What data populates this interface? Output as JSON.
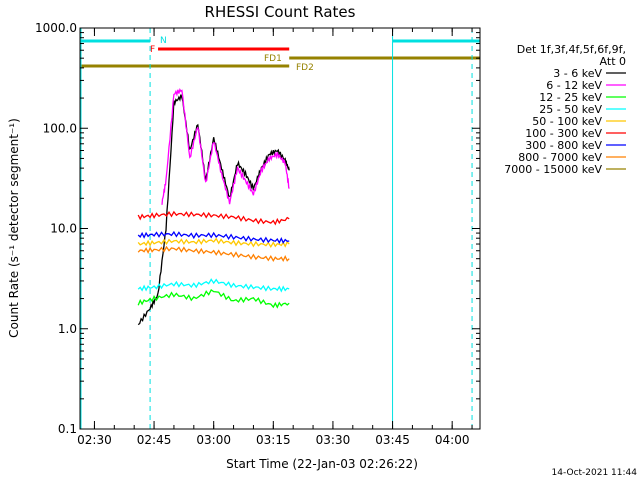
{
  "chart_data": {
    "type": "line",
    "title": "RHESSI Count Rates",
    "xlabel": "Start Time (22-Jan-03 02:26:22)",
    "ylabel": "Count Rate (s⁻¹ detector segment⁻¹)",
    "yscale": "log",
    "ylim": [
      0.1,
      1000
    ],
    "xlim": [
      "02:26:22",
      "04:07:00"
    ],
    "x_ticks": [
      "02:30",
      "02:45",
      "03:00",
      "03:15",
      "03:30",
      "03:45",
      "04:00"
    ],
    "y_ticks": [
      "0.1",
      "1.0",
      "10.0",
      "100.0",
      "1000.0"
    ],
    "grid": false,
    "legend_position": "right",
    "legend_header": [
      "Det 1f,3f,4f,5f,6f,9f,",
      "Att 0"
    ],
    "series": [
      {
        "name": "3 - 6 keV",
        "color": "#000000",
        "x": [
          "02:41",
          "02:44",
          "02:46",
          "02:48",
          "02:50",
          "02:52",
          "02:54",
          "02:56",
          "02:58",
          "03:00",
          "03:02",
          "03:04",
          "03:06",
          "03:08",
          "03:10",
          "03:12",
          "03:14",
          "03:16",
          "03:18",
          "03:19"
        ],
        "y": [
          1.1,
          1.6,
          2.2,
          10,
          180,
          210,
          60,
          110,
          30,
          80,
          40,
          20,
          45,
          35,
          25,
          40,
          55,
          60,
          48,
          38
        ]
      },
      {
        "name": "6 - 12 keV",
        "color": "#ff00ff",
        "x": [
          "02:47",
          "02:48",
          "02:50",
          "02:52",
          "02:54",
          "02:56",
          "02:58",
          "03:00",
          "03:02",
          "03:04",
          "03:06",
          "03:08",
          "03:10",
          "03:12",
          "03:14",
          "03:16",
          "03:18",
          "03:19"
        ],
        "y": [
          18,
          30,
          220,
          240,
          50,
          105,
          28,
          75,
          35,
          18,
          40,
          30,
          22,
          38,
          50,
          55,
          45,
          25
        ]
      },
      {
        "name": "12 - 25 keV",
        "color": "#00ff00",
        "x": [
          "02:41",
          "02:45",
          "02:50",
          "02:55",
          "03:00",
          "03:05",
          "03:10",
          "03:15",
          "03:19"
        ],
        "y": [
          1.8,
          2.0,
          2.2,
          2.0,
          2.4,
          1.9,
          2.0,
          1.7,
          1.8
        ]
      },
      {
        "name": "25 - 50 keV",
        "color": "#00ffff",
        "x": [
          "02:41",
          "02:45",
          "02:50",
          "02:55",
          "03:00",
          "03:05",
          "03:10",
          "03:15",
          "03:19"
        ],
        "y": [
          2.5,
          2.6,
          2.8,
          2.7,
          3.0,
          2.7,
          2.6,
          2.5,
          2.5
        ]
      },
      {
        "name": "50 - 100 keV",
        "color": "#ffc800",
        "x": [
          "02:41",
          "02:45",
          "02:50",
          "02:55",
          "03:00",
          "03:05",
          "03:10",
          "03:15",
          "03:19"
        ],
        "y": [
          7,
          7.2,
          7.5,
          7.3,
          7.6,
          7.2,
          7.0,
          6.9,
          7.0
        ]
      },
      {
        "name": "100 - 300 keV",
        "color": "#ff0000",
        "x": [
          "02:41",
          "02:45",
          "02:50",
          "02:55",
          "03:00",
          "03:05",
          "03:10",
          "03:15",
          "03:19"
        ],
        "y": [
          13,
          13.5,
          14,
          13.8,
          13.5,
          13,
          12,
          11.5,
          12.5
        ]
      },
      {
        "name": "300 - 800 keV",
        "color": "#0000ff",
        "x": [
          "02:41",
          "02:45",
          "02:50",
          "02:55",
          "03:00",
          "03:05",
          "03:10",
          "03:15",
          "03:19"
        ],
        "y": [
          8.5,
          8.7,
          8.8,
          8.5,
          8.6,
          8.2,
          7.8,
          7.6,
          7.5
        ]
      },
      {
        "name": "800 - 7000 keV",
        "color": "#ff8000",
        "x": [
          "02:41",
          "02:45",
          "02:50",
          "02:55",
          "03:00",
          "03:05",
          "03:10",
          "03:15",
          "03:19"
        ],
        "y": [
          6,
          6.1,
          6.3,
          6.0,
          5.8,
          5.5,
          5.2,
          5.0,
          5.0
        ]
      },
      {
        "name": "7000 - 15000 keV",
        "color": "#968200",
        "x": [],
        "y": []
      }
    ],
    "annotations": [
      {
        "text": "N",
        "color": "#00e0e0"
      },
      {
        "text": "F",
        "color": "#ff0000"
      },
      {
        "text": "FD1",
        "color": "#968200"
      },
      {
        "text": "FD2",
        "color": "#968200"
      }
    ],
    "footer_date": "14-Oct-2021 11:44"
  }
}
